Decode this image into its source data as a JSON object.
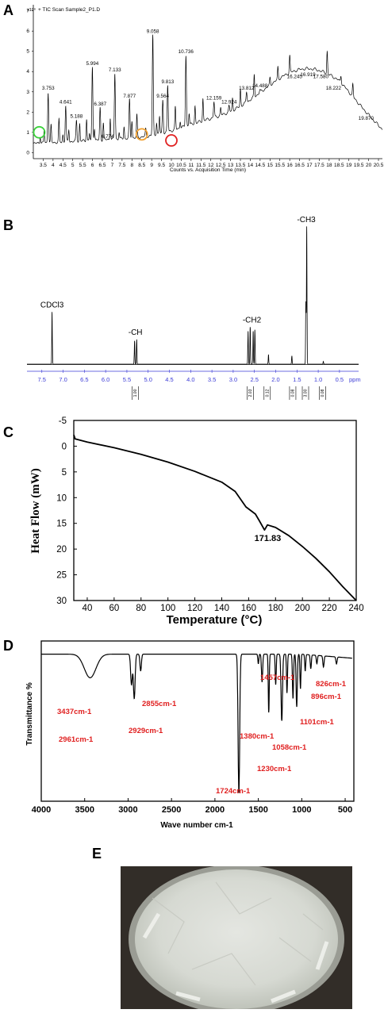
{
  "panels": {
    "a": "A",
    "b": "B",
    "c": "C",
    "d": "D",
    "e": "E"
  },
  "chart_data": [
    {
      "type": "line",
      "panel": "A",
      "title": "+ TIC Scan Sample2_P1.D",
      "y_exponent": "x10⁶",
      "xlabel": "Counts vs. Acquisition Time (min)",
      "ylabel": "",
      "xlim": [
        3.0,
        20.7
      ],
      "ylim": [
        -0.3,
        7.3
      ],
      "x_ticks": [
        "3.5",
        "4",
        "4.5",
        "5",
        "5.5",
        "6",
        "6.5",
        "7",
        "7.5",
        "8",
        "8.5",
        "9",
        "9.5",
        "10",
        "10.5",
        "11",
        "11.5",
        "12",
        "12.5",
        "13",
        "13.5",
        "14",
        "14.5",
        "15",
        "15.5",
        "16",
        "16.5",
        "17",
        "17.5",
        "18",
        "18.5",
        "19",
        "19.5",
        "20",
        "20.5"
      ],
      "y_ticks": [
        "0",
        "1",
        "2",
        "3",
        "4",
        "5",
        "6",
        "7"
      ],
      "peaks": [
        {
          "x": 3.753,
          "y": 3.0,
          "label": "3.753"
        },
        {
          "x": 4.641,
          "y": 2.3,
          "label": "4.641"
        },
        {
          "x": 5.188,
          "y": 1.6,
          "label": "5.188"
        },
        {
          "x": 5.994,
          "y": 4.2,
          "label": "5.994"
        },
        {
          "x": 6.387,
          "y": 2.2,
          "label": "6.387"
        },
        {
          "x": 6.774,
          "y": 0.6,
          "label": "6.774"
        },
        {
          "x": 7.133,
          "y": 3.9,
          "label": "7.133"
        },
        {
          "x": 7.877,
          "y": 2.6,
          "label": "7.877"
        },
        {
          "x": 9.058,
          "y": 5.8,
          "label": "9.058"
        },
        {
          "x": 9.564,
          "y": 2.6,
          "label": "9.564"
        },
        {
          "x": 9.813,
          "y": 3.3,
          "label": "9.813"
        },
        {
          "x": 10.736,
          "y": 4.8,
          "label": "10.736"
        },
        {
          "x": 12.159,
          "y": 2.5,
          "label": "12.159"
        },
        {
          "x": 12.924,
          "y": 2.3,
          "label": "12.924"
        },
        {
          "x": 13.812,
          "y": 3.0,
          "label": "13.812"
        },
        {
          "x": 14.488,
          "y": 3.1,
          "label": "14.488"
        },
        {
          "x": 16.245,
          "y": 3.55,
          "label": "16.245"
        },
        {
          "x": 16.919,
          "y": 3.65,
          "label": "16.919"
        },
        {
          "x": 17.58,
          "y": 3.55,
          "label": "17.580"
        },
        {
          "x": 18.222,
          "y": 3.0,
          "label": "18.222"
        },
        {
          "x": 19.87,
          "y": 1.5,
          "label": "19.870"
        }
      ],
      "markers": [
        {
          "x": 3.3,
          "y": 1.0,
          "color": "#3bd13b"
        },
        {
          "x": 8.5,
          "y": 0.9,
          "color": "#f0a030"
        },
        {
          "x": 10.0,
          "y": 0.6,
          "color": "#e02020"
        }
      ]
    },
    {
      "type": "line",
      "panel": "B",
      "xlabel": "ppm",
      "xlim": [
        7.85,
        0.05
      ],
      "x_ticks": [
        "7.5",
        "7.0",
        "6.5",
        "6.0",
        "5.5",
        "5.0",
        "4.5",
        "4.0",
        "3.5",
        "3.0",
        "2.5",
        "2.0",
        "1.5",
        "1.0",
        "0.5"
      ],
      "signals": [
        {
          "ppm": 7.26,
          "height": 0.38
        },
        {
          "ppm": 5.32,
          "height": 0.17
        },
        {
          "ppm": 5.27,
          "height": 0.18
        },
        {
          "ppm": 2.65,
          "height": 0.24
        },
        {
          "ppm": 2.6,
          "height": 0.27
        },
        {
          "ppm": 2.53,
          "height": 0.24
        },
        {
          "ppm": 2.49,
          "height": 0.25
        },
        {
          "ppm": 2.17,
          "height": 0.07
        },
        {
          "ppm": 1.62,
          "height": 0.06
        },
        {
          "ppm": 1.29,
          "height": 0.45
        },
        {
          "ppm": 1.27,
          "height": 1.0
        },
        {
          "ppm": 0.88,
          "height": 0.02
        }
      ],
      "annotations": [
        {
          "ppm": 7.26,
          "text": "CDCl3"
        },
        {
          "ppm": 5.3,
          "text": "-CH"
        },
        {
          "ppm": 2.56,
          "text": "-CH2"
        },
        {
          "ppm": 1.28,
          "text": "-CH3"
        }
      ],
      "integrals": [
        {
          "ppm": 5.3,
          "value": "1.00"
        },
        {
          "ppm": 2.6,
          "value": "2.03"
        },
        {
          "ppm": 2.2,
          "value": "0.12"
        },
        {
          "ppm": 1.6,
          "value": "0.08"
        },
        {
          "ppm": 1.3,
          "value": "3.00"
        },
        {
          "ppm": 0.9,
          "value": "0.08"
        }
      ]
    },
    {
      "type": "line",
      "panel": "C",
      "xlabel": "Temperature (°C)",
      "ylabel": "Heat Flow (mW)",
      "xlim": [
        30,
        240
      ],
      "ylim": [
        -5,
        30
      ],
      "y_inverted": true,
      "x_ticks": [
        "40",
        "60",
        "80",
        "100",
        "120",
        "140",
        "160",
        "180",
        "200",
        "220",
        "240"
      ],
      "y_ticks": [
        "-5",
        "0",
        "5",
        "10",
        "15",
        "20",
        "25",
        "30"
      ],
      "curve": [
        [
          30,
          -2.2
        ],
        [
          31,
          -1.4
        ],
        [
          40,
          -0.8
        ],
        [
          60,
          0.3
        ],
        [
          80,
          1.6
        ],
        [
          100,
          3.1
        ],
        [
          120,
          4.9
        ],
        [
          140,
          7.0
        ],
        [
          150,
          8.8
        ],
        [
          158,
          11.8
        ],
        [
          165,
          13.2
        ],
        [
          168,
          14.5
        ],
        [
          171.83,
          16.3
        ],
        [
          174,
          15.3
        ],
        [
          180,
          15.8
        ],
        [
          190,
          17.4
        ],
        [
          200,
          19.5
        ],
        [
          210,
          21.8
        ],
        [
          220,
          24.4
        ],
        [
          230,
          27.3
        ],
        [
          240,
          30.0
        ]
      ],
      "annotation": {
        "x": 171.83,
        "text": "171.83"
      }
    },
    {
      "type": "line",
      "panel": "D",
      "xlabel": "Wave number cm-1",
      "ylabel": "Transmittance %",
      "xlim": [
        4000,
        400
      ],
      "x_ticks": [
        "4000",
        "3500",
        "3000",
        "2500",
        "2000",
        "1500",
        "1000",
        "500"
      ],
      "bands": [
        {
          "x": 3437,
          "depth": 0.17,
          "label": "3437cm-1"
        },
        {
          "x": 2961,
          "depth": 0.22,
          "label": "2961cm-1"
        },
        {
          "x": 2929,
          "depth": 0.32,
          "label": "2929cm-1"
        },
        {
          "x": 2855,
          "depth": 0.12,
          "label": "2855cm-1"
        },
        {
          "x": 1724,
          "depth": 1.0,
          "label": "1724cm-1"
        },
        {
          "x": 1457,
          "depth": 0.2,
          "label": "1457cm-1"
        },
        {
          "x": 1380,
          "depth": 0.42,
          "label": "1380cm-1"
        },
        {
          "x": 1230,
          "depth": 0.48,
          "label": "1230cm-1"
        },
        {
          "x": 1101,
          "depth": 0.32,
          "label": "1101cm-1"
        },
        {
          "x": 1058,
          "depth": 0.38,
          "label": "1058cm-1"
        },
        {
          "x": 896,
          "depth": 0.1,
          "label": "896cm-1"
        },
        {
          "x": 826,
          "depth": 0.06,
          "label": "826cm-1"
        }
      ]
    }
  ]
}
